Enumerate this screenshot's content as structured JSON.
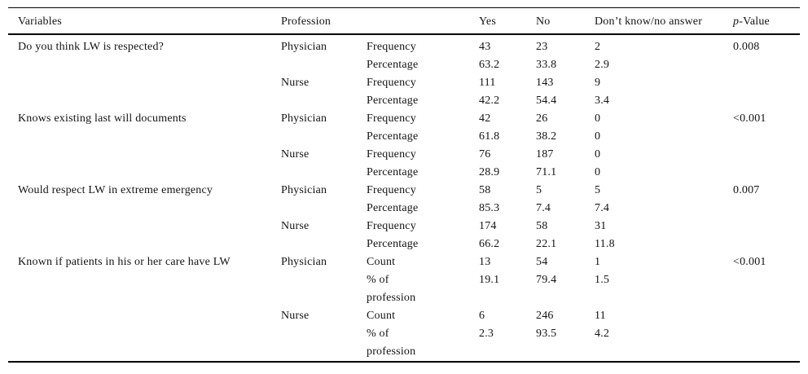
{
  "header": {
    "variables": "Variables",
    "profession": "Profession",
    "statistic": "",
    "yes": "Yes",
    "no": "No",
    "dont_know": "Don’t know/no answer",
    "p_italic": "p",
    "p_rest": "-Value"
  },
  "groups": [
    {
      "variable": "Do you think LW is respected?",
      "p_value": "0.008",
      "professions": [
        {
          "name": "Physician",
          "rows": [
            {
              "stat": "Frequency",
              "yes": "43",
              "no": "23",
              "dk": "2"
            },
            {
              "stat": "Percentage",
              "yes": "63.2",
              "no": "33.8",
              "dk": "2.9"
            }
          ]
        },
        {
          "name": "Nurse",
          "rows": [
            {
              "stat": "Frequency",
              "yes": "111",
              "no": "143",
              "dk": "9"
            },
            {
              "stat": "Percentage",
              "yes": "42.2",
              "no": "54.4",
              "dk": "3.4"
            }
          ]
        }
      ]
    },
    {
      "variable": "Knows existing last will documents",
      "p_value": "<0.001",
      "professions": [
        {
          "name": "Physician",
          "rows": [
            {
              "stat": "Frequency",
              "yes": "42",
              "no": "26",
              "dk": "0"
            },
            {
              "stat": "Percentage",
              "yes": "61.8",
              "no": "38.2",
              "dk": "0"
            }
          ]
        },
        {
          "name": "Nurse",
          "rows": [
            {
              "stat": "Frequency",
              "yes": "76",
              "no": "187",
              "dk": "0"
            },
            {
              "stat": "Percentage",
              "yes": "28.9",
              "no": "71.1",
              "dk": "0"
            }
          ]
        }
      ]
    },
    {
      "variable": "Would respect LW in extreme emergency",
      "p_value": "0.007",
      "professions": [
        {
          "name": "Physician",
          "rows": [
            {
              "stat": "Frequency",
              "yes": "58",
              "no": "5",
              "dk": "5"
            },
            {
              "stat": "Percentage",
              "yes": "85.3",
              "no": "7.4",
              "dk": "7.4"
            }
          ]
        },
        {
          "name": "Nurse",
          "rows": [
            {
              "stat": "Frequency",
              "yes": "174",
              "no": "58",
              "dk": "31"
            },
            {
              "stat": "Percentage",
              "yes": "66.2",
              "no": "22.1",
              "dk": "11.8"
            }
          ]
        }
      ]
    },
    {
      "variable": "Known if patients in his or her care have LW",
      "p_value": "<0.001",
      "professions": [
        {
          "name": "Physician",
          "rows": [
            {
              "stat": "Count",
              "yes": "13",
              "no": "54",
              "dk": "1"
            },
            {
              "stat": "% of profession",
              "yes": "19.1",
              "no": "79.4",
              "dk": "1.5"
            }
          ]
        },
        {
          "name": "Nurse",
          "rows": [
            {
              "stat": "Count",
              "yes": "6",
              "no": "246",
              "dk": "11"
            },
            {
              "stat": "% of profession",
              "yes": "2.3",
              "no": "93.5",
              "dk": "4.2"
            }
          ]
        }
      ]
    }
  ]
}
